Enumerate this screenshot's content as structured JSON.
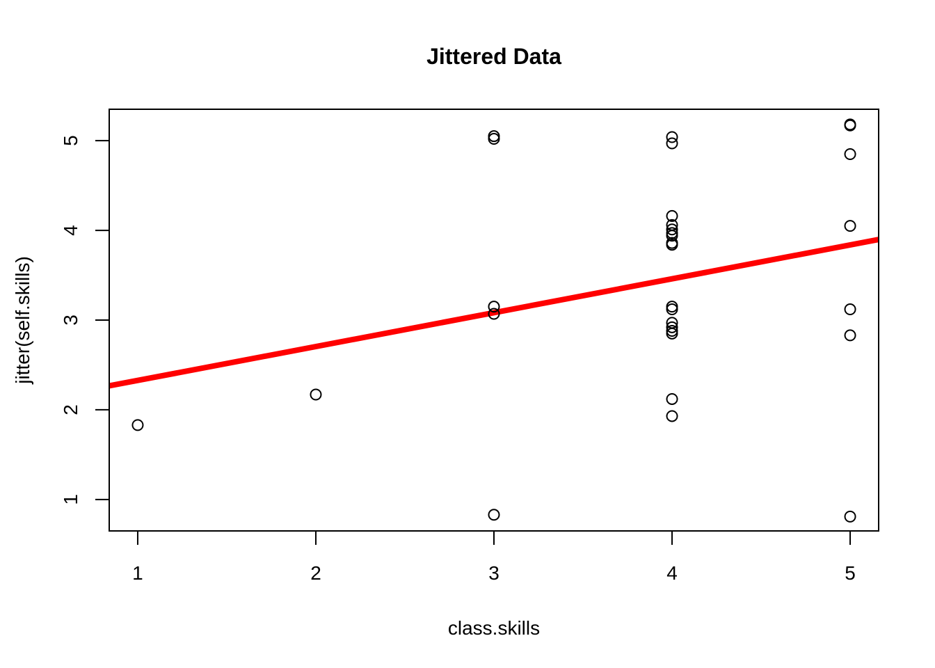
{
  "chart_data": {
    "type": "scatter",
    "title": "Jittered Data",
    "xlabel": "class.skills",
    "ylabel": "jitter(self.skills)",
    "xlim": [
      0.84,
      5.16
    ],
    "ylim": [
      0.65,
      5.35
    ],
    "x_ticks": [
      1,
      2,
      3,
      4,
      5
    ],
    "x_tick_labels": [
      "1",
      "2",
      "3",
      "4",
      "5"
    ],
    "y_ticks": [
      1,
      2,
      3,
      4,
      5
    ],
    "y_tick_labels": [
      "1",
      "2",
      "3",
      "4",
      "5"
    ],
    "grid": false,
    "point_style": "open-circle",
    "point_color": "#000000",
    "points": [
      {
        "x": 1,
        "y": 1.83
      },
      {
        "x": 2,
        "y": 2.17
      },
      {
        "x": 3,
        "y": 5.05
      },
      {
        "x": 3,
        "y": 5.02
      },
      {
        "x": 3,
        "y": 3.15
      },
      {
        "x": 3,
        "y": 3.07
      },
      {
        "x": 3,
        "y": 0.83
      },
      {
        "x": 4,
        "y": 5.04
      },
      {
        "x": 4,
        "y": 4.97
      },
      {
        "x": 4,
        "y": 4.16
      },
      {
        "x": 4,
        "y": 4.06
      },
      {
        "x": 4,
        "y": 4.01
      },
      {
        "x": 4,
        "y": 3.97
      },
      {
        "x": 4,
        "y": 3.94
      },
      {
        "x": 4,
        "y": 3.86
      },
      {
        "x": 4,
        "y": 3.84
      },
      {
        "x": 4,
        "y": 3.15
      },
      {
        "x": 4,
        "y": 3.12
      },
      {
        "x": 4,
        "y": 2.97
      },
      {
        "x": 4,
        "y": 2.92
      },
      {
        "x": 4,
        "y": 2.88
      },
      {
        "x": 4,
        "y": 2.85
      },
      {
        "x": 4,
        "y": 2.12
      },
      {
        "x": 4,
        "y": 1.93
      },
      {
        "x": 5,
        "y": 5.18
      },
      {
        "x": 5,
        "y": 5.17
      },
      {
        "x": 5,
        "y": 4.85
      },
      {
        "x": 5,
        "y": 4.05
      },
      {
        "x": 5,
        "y": 3.12
      },
      {
        "x": 5,
        "y": 2.83
      },
      {
        "x": 5,
        "y": 0.81
      }
    ],
    "regression_line": {
      "color": "#ff0000",
      "intercept": 1.95,
      "slope": 0.3775
    }
  }
}
